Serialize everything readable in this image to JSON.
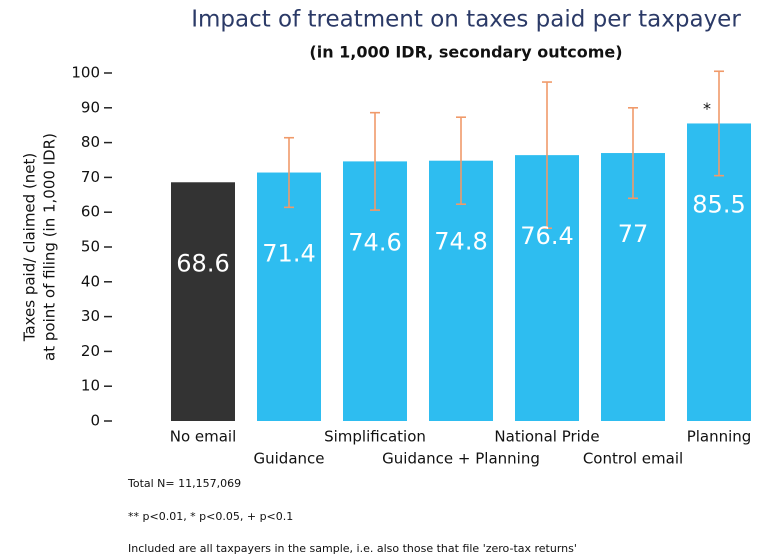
{
  "chart_data": {
    "type": "bar",
    "title": "Impact of treatment on taxes paid per taxpayer",
    "subtitle": "(in 1,000 IDR, secondary outcome)",
    "y_label": [
      "Taxes paid/ claimed (net)",
      "at point of filing (in 1,000 IDR)"
    ],
    "categories": [
      "No email",
      "Guidance",
      "Simplification",
      "Guidance + Planning",
      "National Pride",
      "Control email",
      "Planning"
    ],
    "values": [
      68.6,
      71.4,
      74.6,
      74.8,
      76.4,
      77,
      85.5
    ],
    "errors": [
      null,
      10,
      14,
      12.5,
      21,
      13,
      15
    ],
    "colors": [
      "#333333",
      "#2ebdf0",
      "#2ebdf0",
      "#2ebdf0",
      "#2ebdf0",
      "#2ebdf0",
      "#2ebdf0"
    ],
    "error_color": "#f09a6a",
    "ylim": [
      0,
      100
    ],
    "yticks": [
      0,
      10,
      20,
      30,
      40,
      50,
      60,
      70,
      80,
      90,
      100
    ],
    "grid": false,
    "annotations": [
      {
        "text": "*",
        "category": 6
      }
    ],
    "notes": [
      "Total N= 11,157,069",
      "** p<0.01, * p<0.05, + p<0.1",
      "Included are all taxpayers in the sample, i.e. also those that file 'zero-tax returns'"
    ]
  }
}
